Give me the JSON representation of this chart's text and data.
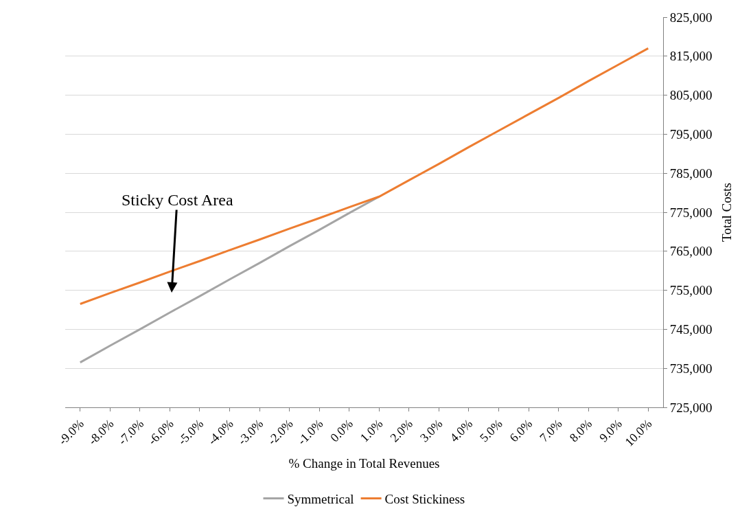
{
  "chart_data": {
    "type": "line",
    "xlabel": "% Change in Total Revenues",
    "ylabel": "Total Costs",
    "categories": [
      "-9.0%",
      "-8.0%",
      "-7.0%",
      "-6.0%",
      "-5.0%",
      "-4.0%",
      "-3.0%",
      "-2.0%",
      "-1.0%",
      "0.0%",
      "1.0%",
      "2.0%",
      "3.0%",
      "4.0%",
      "5.0%",
      "6.0%",
      "7.0%",
      "8.0%",
      "9.0%",
      "10.0%"
    ],
    "series": [
      {
        "name": "Symmetrical",
        "color": "#a5a5a5",
        "values": [
          736500,
          740800,
          745000,
          749300,
          753500,
          757800,
          762000,
          766300,
          770500,
          774800,
          779000,
          null,
          null,
          null,
          null,
          null,
          null,
          null,
          null,
          null
        ]
      },
      {
        "name": "Cost Stickiness",
        "color": "#ed7d31",
        "values": [
          751500,
          754300,
          757000,
          759800,
          762500,
          765300,
          768000,
          770800,
          773500,
          776300,
          779000,
          783200,
          787400,
          791700,
          795900,
          800100,
          804300,
          808600,
          812800,
          817000
        ]
      }
    ],
    "ylim": [
      725000,
      825000
    ],
    "yticks": [
      {
        "value": 725000,
        "label": "725,000"
      },
      {
        "value": 735000,
        "label": "735,000"
      },
      {
        "value": 745000,
        "label": "745,000"
      },
      {
        "value": 755000,
        "label": "755,000"
      },
      {
        "value": 765000,
        "label": "765,000"
      },
      {
        "value": 775000,
        "label": "775,000"
      },
      {
        "value": 785000,
        "label": "785,000"
      },
      {
        "value": 795000,
        "label": "795,000"
      },
      {
        "value": 805000,
        "label": "805,000"
      },
      {
        "value": 815000,
        "label": "815,000"
      },
      {
        "value": 825000,
        "label": "825,000"
      }
    ],
    "annotations": [
      "Sticky Cost Area"
    ],
    "grid": "y",
    "legend": "bottom",
    "marker": "none",
    "line_style": "solid"
  }
}
